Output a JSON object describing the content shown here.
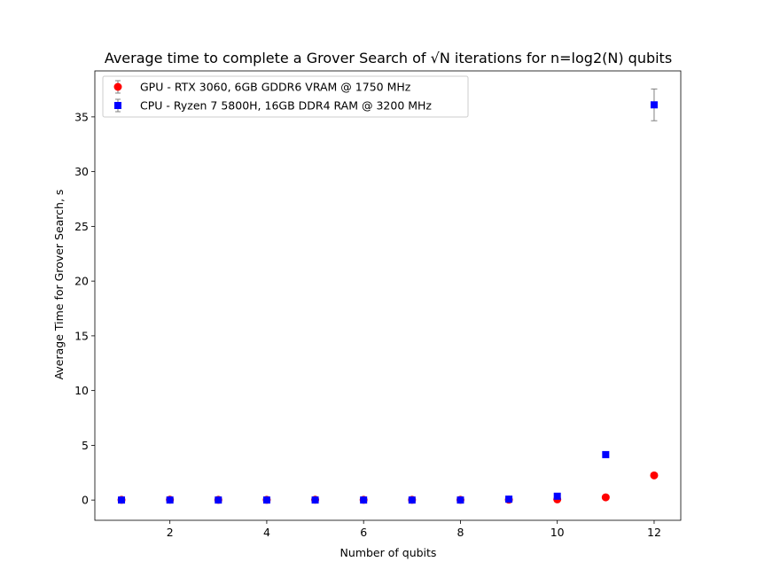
{
  "chart_data": {
    "type": "scatter",
    "title": "Average time to complete a Grover Search of √N iterations for n=log2(N) qubits",
    "xlabel": "Number of qubits",
    "ylabel": "Average Time for Grover Search, s",
    "xlim": [
      0.45,
      12.55
    ],
    "ylim": [
      -1.85,
      39.2
    ],
    "xticks": [
      2,
      4,
      6,
      8,
      10,
      12
    ],
    "yticks": [
      0,
      5,
      10,
      15,
      20,
      25,
      30,
      35
    ],
    "grid": false,
    "legend_position": "top-left",
    "series": [
      {
        "name": "GPU - RTX 3060, 6GB GDDR6 VRAM @ 1750 MHz",
        "marker": "circle",
        "color": "#ff0000",
        "x": [
          1,
          2,
          3,
          4,
          5,
          6,
          7,
          8,
          9,
          10,
          11,
          12
        ],
        "y": [
          0.02,
          0.03,
          0.02,
          0.02,
          0.03,
          0.02,
          0.02,
          0.02,
          0.03,
          0.06,
          0.25,
          2.25
        ],
        "yerr": [
          0,
          0,
          0,
          0,
          0,
          0,
          0,
          0,
          0,
          0,
          0,
          0
        ]
      },
      {
        "name": "CPU - Ryzen 7 5800H, 16GB DDR4 RAM @ 3200 MHz",
        "marker": "square",
        "color": "#0000ff",
        "x": [
          1,
          2,
          3,
          4,
          5,
          6,
          7,
          8,
          9,
          10,
          11,
          12
        ],
        "y": [
          0.0,
          0.0,
          0.0,
          0.0,
          0.0,
          0.0,
          0.0,
          0.0,
          0.08,
          0.35,
          4.15,
          36.1
        ],
        "yerr": [
          0,
          0,
          0,
          0,
          0,
          0,
          0,
          0,
          0,
          0,
          0.05,
          1.45
        ]
      }
    ]
  }
}
